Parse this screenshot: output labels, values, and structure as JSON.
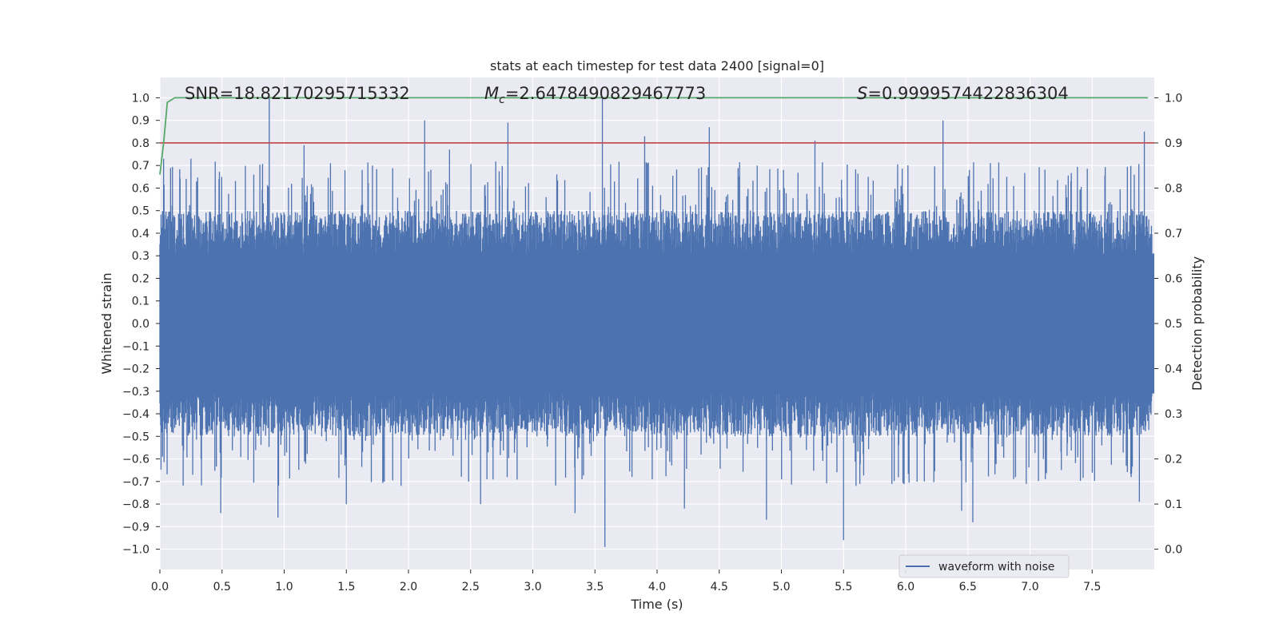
{
  "chart_data": {
    "type": "line",
    "title": "stats at each timestep for test data 2400 [signal=0]",
    "xlabel": "Time (s)",
    "ylabel": "Whitened strain",
    "y2label": "Detection probability",
    "xlim": [
      0,
      8.0
    ],
    "ylim": [
      -1.09,
      1.09
    ],
    "y2lim": [
      -0.045,
      1.045
    ],
    "x_ticks": [
      "0.0",
      "0.5",
      "1.0",
      "1.5",
      "2.0",
      "2.5",
      "3.0",
      "3.5",
      "4.0",
      "4.5",
      "5.0",
      "5.5",
      "6.0",
      "6.5",
      "7.0",
      "7.5"
    ],
    "y_ticks": [
      "1.0",
      "0.9",
      "0.8",
      "0.7",
      "0.6",
      "0.5",
      "0.4",
      "0.3",
      "0.2",
      "0.1",
      "0.0",
      "−0.1",
      "−0.2",
      "−0.3",
      "−0.4",
      "−0.5",
      "−0.6",
      "−0.7",
      "−0.8",
      "−0.9",
      "−1.0"
    ],
    "y2_ticks": [
      "1.0",
      "0.9",
      "0.8",
      "0.7",
      "0.6",
      "0.5",
      "0.4",
      "0.3",
      "0.2",
      "0.1",
      "0.0"
    ],
    "annotations": {
      "snr": "SNR=18.82170295715332",
      "mc_symbol": "M",
      "mc_sub": "c",
      "mc_value": "=2.6478490829467773",
      "s_symbol": "S",
      "s_value": "=0.9999574422836304"
    },
    "legend": {
      "label": "waveform with noise",
      "placement": "lower-right"
    },
    "series": [
      {
        "name": "waveform with noise",
        "color": "#4c72b0",
        "axis": "left",
        "style": "dense noise, typical envelope approx ±0.45",
        "peaks_positive": [
          [
            0.88,
            1.0
          ],
          [
            0.03,
            0.73
          ],
          [
            0.25,
            0.73
          ],
          [
            1.16,
            0.79
          ],
          [
            2.13,
            0.9
          ],
          [
            2.33,
            0.77
          ],
          [
            2.8,
            0.89
          ],
          [
            3.56,
            1.0
          ],
          [
            3.9,
            0.83
          ],
          [
            4.42,
            0.87
          ],
          [
            5.27,
            0.81
          ],
          [
            6.3,
            0.9
          ],
          [
            7.92,
            0.85
          ]
        ],
        "peaks_negative": [
          [
            0.49,
            -0.84
          ],
          [
            0.95,
            -0.86
          ],
          [
            1.5,
            -0.8
          ],
          [
            2.58,
            -0.8
          ],
          [
            3.34,
            -0.84
          ],
          [
            3.58,
            -0.99
          ],
          [
            4.22,
            -0.82
          ],
          [
            4.88,
            -0.87
          ],
          [
            5.5,
            -0.96
          ],
          [
            6.45,
            -0.83
          ],
          [
            6.54,
            -0.88
          ],
          [
            7.88,
            -0.79
          ]
        ]
      },
      {
        "name": "detection probability",
        "color": "#55a868",
        "axis": "right",
        "points": [
          [
            0.0,
            0.83
          ],
          [
            0.03,
            0.9
          ],
          [
            0.06,
            0.99
          ],
          [
            0.12,
            1.0
          ],
          [
            7.95,
            1.0
          ]
        ]
      },
      {
        "name": "threshold",
        "color": "#c44e52",
        "axis": "right",
        "points": [
          [
            0.0,
            0.9
          ],
          [
            8.0,
            0.9
          ]
        ]
      }
    ]
  }
}
